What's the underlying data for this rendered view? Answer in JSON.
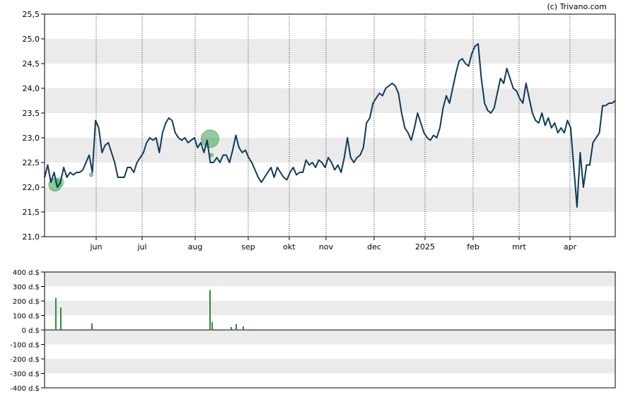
{
  "copyright": "(c) Trivano.com",
  "colors": {
    "price_line": "#0d3a5a",
    "band": "#ebebeb",
    "volume_bar": "#2e8b3a",
    "marker_fill": "#3aa050",
    "axis": "#000000"
  },
  "chart_data": [
    {
      "type": "line",
      "title": "",
      "xlabel": "",
      "ylabel": "",
      "ylim": [
        21.0,
        25.5
      ],
      "y_ticks": [
        "21,0",
        "21,5",
        "22,0",
        "22,5",
        "23,0",
        "23,5",
        "24,0",
        "24,5",
        "25,0",
        "25,5"
      ],
      "x_ticks": [
        "jun",
        "jul",
        "aug",
        "sep",
        "okt",
        "nov",
        "dec",
        "2025",
        "feb",
        "mrt",
        "apr"
      ],
      "grid": "alternating horizontal bands, dotted vertical month lines",
      "series": [
        {
          "values": [
            22.2,
            22.45,
            22.1,
            22.3,
            22.0,
            22.1,
            22.4,
            22.2,
            22.3,
            22.25,
            22.3,
            22.3,
            22.35,
            22.5,
            22.65,
            22.3,
            23.35,
            23.2,
            22.7,
            22.85,
            22.9,
            22.7,
            22.5,
            22.2,
            22.2,
            22.2,
            22.4,
            22.4,
            22.3,
            22.5,
            22.6,
            22.7,
            22.9,
            23.0,
            22.95,
            23.0,
            22.7,
            23.1,
            23.3,
            23.4,
            23.35,
            23.1,
            23.0,
            22.95,
            23.0,
            22.9,
            22.95,
            23.0,
            22.8,
            22.9,
            22.7,
            22.95,
            22.5,
            22.5,
            22.6,
            22.5,
            22.65,
            22.65,
            22.5,
            22.75,
            23.05,
            22.8,
            22.7,
            22.75,
            22.6,
            22.5,
            22.35,
            22.2,
            22.1,
            22.2,
            22.3,
            22.4,
            22.2,
            22.4,
            22.3,
            22.2,
            22.15,
            22.3,
            22.4,
            22.25,
            22.3,
            22.3,
            22.55,
            22.45,
            22.5,
            22.4,
            22.55,
            22.5,
            22.4,
            22.6,
            22.5,
            22.35,
            22.45,
            22.3,
            22.6,
            23.0,
            22.6,
            22.5,
            22.6,
            22.65,
            22.8,
            23.3,
            23.4,
            23.7,
            23.8,
            23.9,
            23.85,
            24.0,
            24.05,
            24.1,
            24.05,
            23.9,
            23.5,
            23.2,
            23.1,
            22.95,
            23.2,
            23.5,
            23.3,
            23.1,
            23.0,
            22.95,
            23.05,
            23.0,
            23.2,
            23.6,
            23.85,
            23.7,
            24.0,
            24.3,
            24.55,
            24.6,
            24.5,
            24.45,
            24.7,
            24.85,
            24.9,
            24.2,
            23.7,
            23.55,
            23.5,
            23.6,
            23.9,
            24.2,
            24.1,
            24.4,
            24.2,
            24.0,
            23.95,
            23.8,
            23.7,
            24.1,
            23.8,
            23.5,
            23.35,
            23.3,
            23.5,
            23.25,
            23.4,
            23.2,
            23.3,
            23.1,
            23.2,
            23.1,
            23.35,
            23.2,
            22.4,
            21.6,
            22.7,
            22.0,
            22.45,
            22.45,
            22.9,
            23.0,
            23.1,
            23.65,
            23.65,
            23.7,
            23.7,
            23.75
          ]
        }
      ],
      "events": [
        {
          "month": "mei",
          "value": 22.05,
          "size": "medium"
        },
        {
          "month": "jun",
          "value": 22.25,
          "size": "small"
        },
        {
          "month": "aug",
          "value": 22.98,
          "size": "large"
        },
        {
          "month": "aug",
          "value": 22.65,
          "size": "small"
        }
      ]
    },
    {
      "type": "bar",
      "title": "",
      "xlabel": "",
      "ylabel": "",
      "ylim": [
        -400,
        400
      ],
      "y_ticks": [
        "400 d.$",
        "300 d.$",
        "200 d.$",
        "100 d.$",
        "0 d.$",
        "-100 d.$",
        "-200 d.$",
        "-300 d.$",
        "-400 d.$"
      ],
      "values": [
        220,
        155,
        45,
        275,
        55,
        20,
        40,
        25
      ]
    }
  ]
}
